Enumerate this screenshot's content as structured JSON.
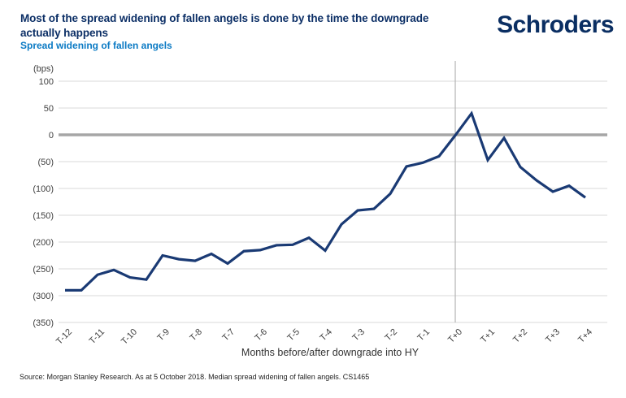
{
  "header": {
    "title": "Most of the spread widening of fallen angels is done by the time the downgrade actually happens",
    "subtitle": "Spread widening of fallen angels",
    "logo": "Schroders"
  },
  "footer": {
    "source": "Source: Morgan Stanley Research. As at 5 October 2018. Median spread widening of fallen angels. CS1465"
  },
  "colors": {
    "title": "#0c2f66",
    "subtitle": "#0b7ac4",
    "logo": "#0a2e62",
    "line": "#1a3a74",
    "grid": "#d9d9d9",
    "zero_line": "#a6a6a6",
    "event_line": "#b3b3b3",
    "tick_text": "#404040"
  },
  "chart_data": {
    "type": "line",
    "title": "Spread widening of fallen angels",
    "unit_label": "(bps)",
    "xlabel": "Months before/after downgrade into HY",
    "ylim": [
      -350,
      100
    ],
    "grid": true,
    "legend": false,
    "zero_line_emphasized": true,
    "event_line_x": 0,
    "ytick_values": [
      100,
      50,
      0,
      -50,
      -100,
      -150,
      -200,
      -250,
      -300,
      -350
    ],
    "ytick_labels": [
      "100",
      "50",
      "0",
      "(50)",
      "(100)",
      "(150)",
      "(200)",
      "(250)",
      "(300)",
      "(350)"
    ],
    "xtick_values": [
      -12,
      -11,
      -10,
      -9,
      -8,
      -7,
      -6,
      -5,
      -4,
      -3,
      -2,
      -1,
      0,
      1,
      2,
      3,
      4
    ],
    "xtick_labels": [
      "T-12",
      "T-11",
      "T-10",
      "T-9",
      "T-8",
      "T-7",
      "T-6",
      "T-5",
      "T-4",
      "T-3",
      "T-2",
      "T-1",
      "T+0",
      "T+1",
      "T+2",
      "T+3",
      "T+4"
    ],
    "series_name": "Median spread widening of fallen angels",
    "x": [
      -12,
      -11.5,
      -11,
      -10.5,
      -10,
      -9.5,
      -9,
      -8.5,
      -8,
      -7.5,
      -7,
      -6.5,
      -6,
      -5.5,
      -5,
      -4.5,
      -4,
      -3.5,
      -3,
      -2.5,
      -2,
      -1.5,
      -1,
      -0.5,
      0,
      0.5,
      1,
      1.5,
      2,
      2.5,
      3,
      3.5,
      4
    ],
    "values": [
      -290,
      -290,
      -261,
      -252,
      -266,
      -270,
      -225,
      -232,
      -235,
      -222,
      -240,
      -217,
      -215,
      -206,
      -205,
      -192,
      -216,
      -167,
      -141,
      -138,
      -110,
      -59,
      -52,
      -40,
      -1,
      40,
      -47,
      -6,
      -60,
      -85,
      -106,
      -95,
      -117
    ]
  }
}
